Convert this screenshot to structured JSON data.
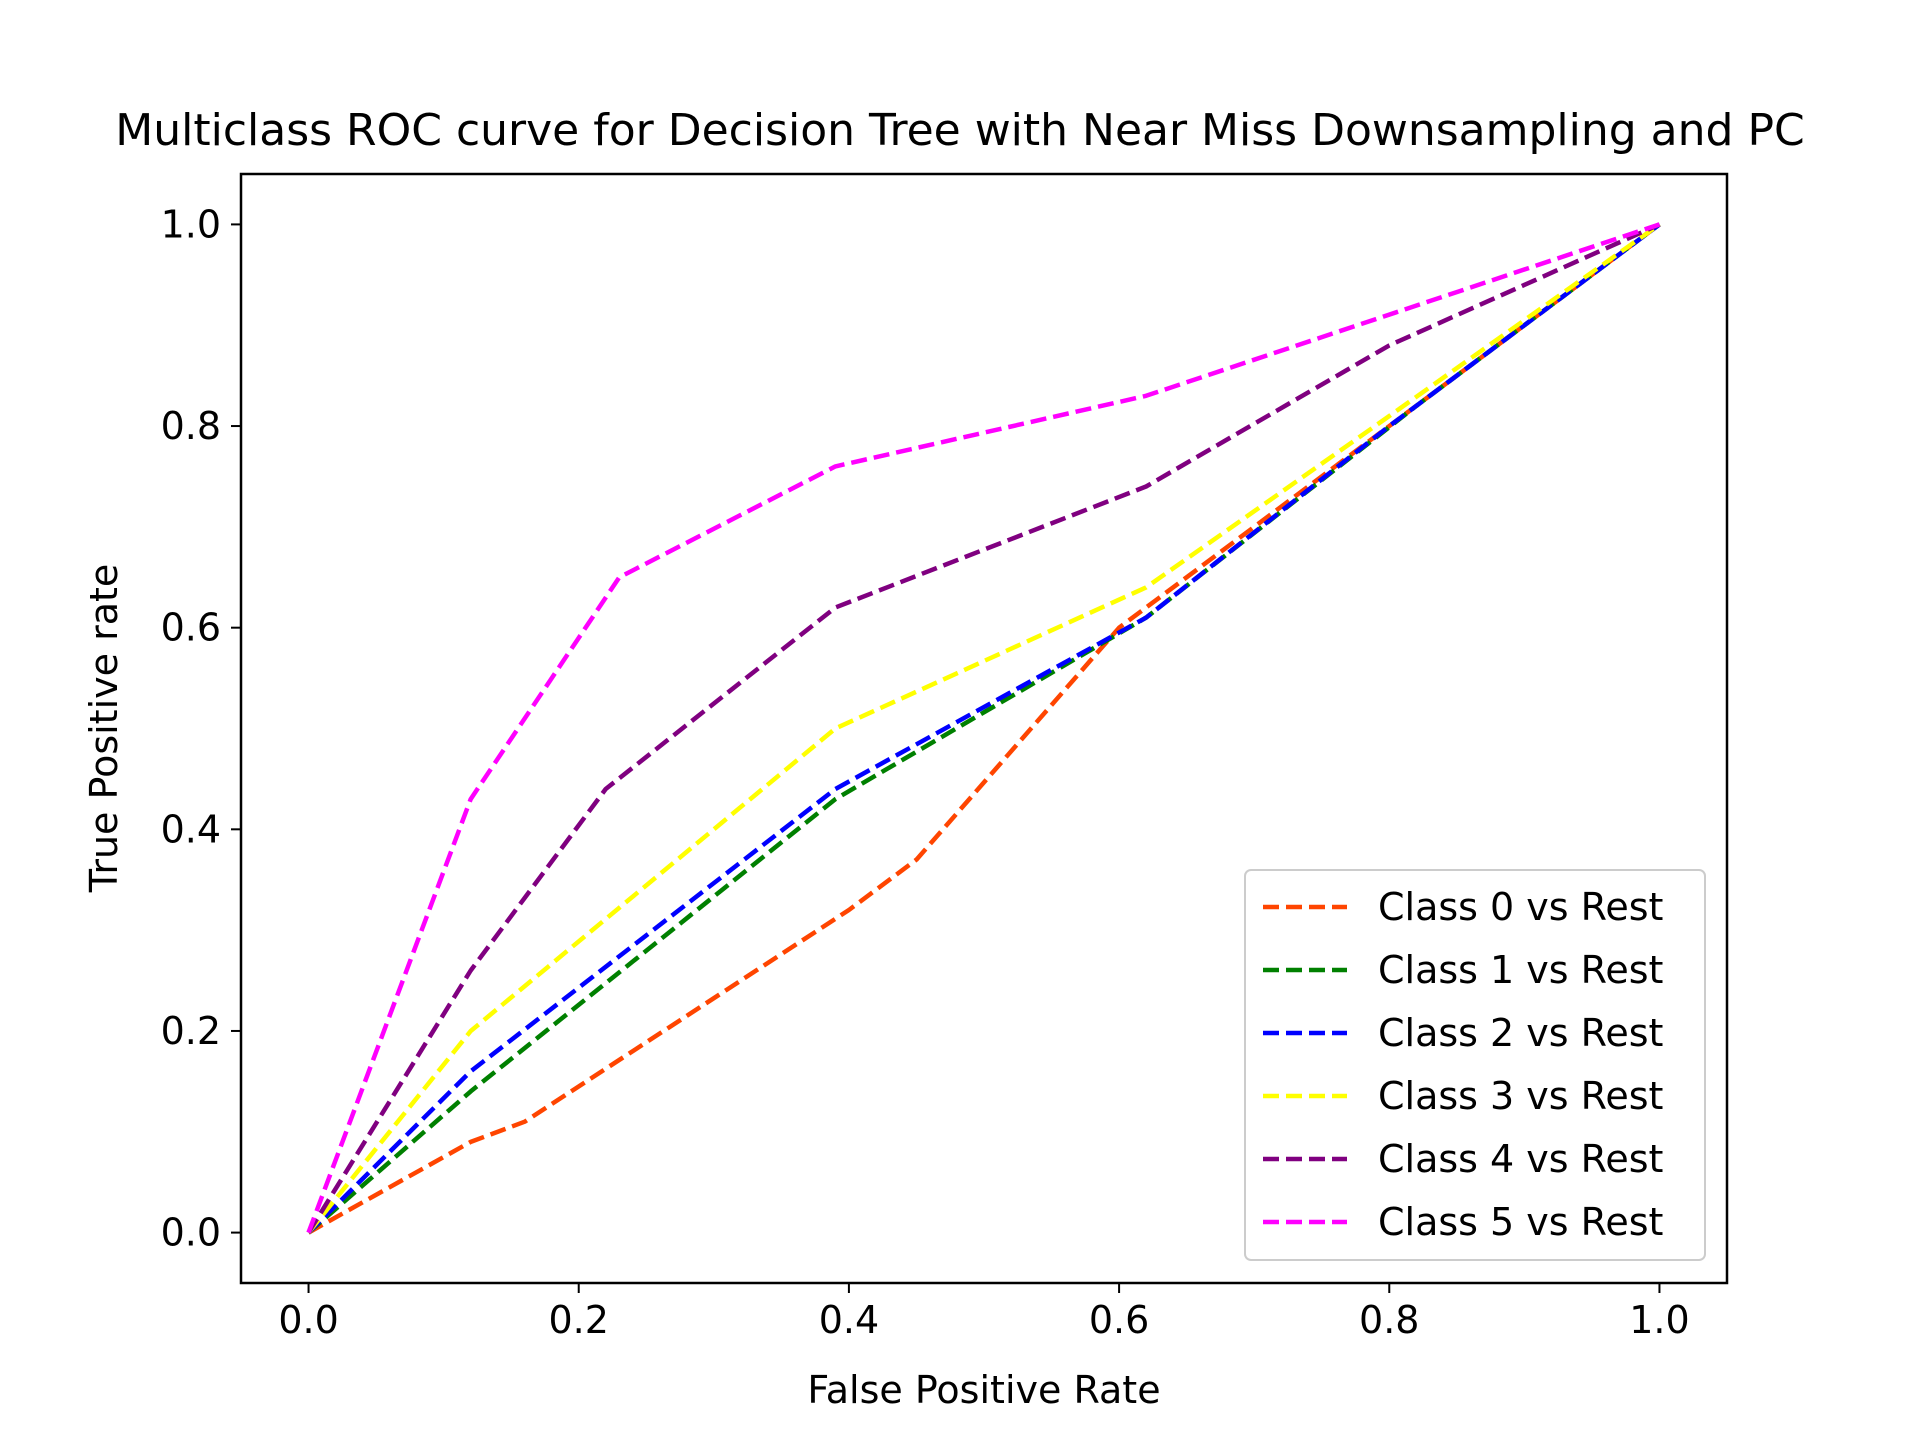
{
  "chart_data": {
    "type": "line",
    "title": "Multiclass ROC curve for Decision Tree with Near Miss Downsampling and PC",
    "xlabel": "False Positive Rate",
    "ylabel": "True Positive rate",
    "xlim": [
      -0.05,
      1.05
    ],
    "ylim": [
      -0.05,
      1.05
    ],
    "xticks": [
      "0.0",
      "0.2",
      "0.4",
      "0.6",
      "0.8",
      "1.0"
    ],
    "yticks": [
      "0.0",
      "0.2",
      "0.4",
      "0.6",
      "0.8",
      "1.0"
    ],
    "grid": false,
    "line_style": "dashed",
    "legend_position": "lower-right",
    "series": [
      {
        "name": "Class 0 vs Rest",
        "color": "#ff4500",
        "x": [
          0.0,
          0.12,
          0.16,
          0.24,
          0.4,
          0.45,
          0.6,
          0.8,
          1.0
        ],
        "y": [
          0.0,
          0.09,
          0.11,
          0.18,
          0.32,
          0.37,
          0.6,
          0.8,
          1.0
        ]
      },
      {
        "name": "Class 1 vs Rest",
        "color": "#008000",
        "x": [
          0.0,
          0.12,
          0.39,
          0.62,
          0.82,
          1.0
        ],
        "y": [
          0.0,
          0.14,
          0.43,
          0.61,
          0.82,
          1.0
        ]
      },
      {
        "name": "Class 2 vs Rest",
        "color": "#0000ff",
        "x": [
          0.0,
          0.12,
          0.39,
          0.62,
          0.8,
          1.0
        ],
        "y": [
          0.0,
          0.16,
          0.44,
          0.61,
          0.8,
          1.0
        ]
      },
      {
        "name": "Class 3 vs Rest",
        "color": "#ffff00",
        "x": [
          0.0,
          0.12,
          0.39,
          0.62,
          0.8,
          1.0
        ],
        "y": [
          0.0,
          0.2,
          0.5,
          0.64,
          0.81,
          1.0
        ]
      },
      {
        "name": "Class 4 vs Rest",
        "color": "#800080",
        "x": [
          0.0,
          0.12,
          0.22,
          0.39,
          0.62,
          0.8,
          1.0
        ],
        "y": [
          0.0,
          0.26,
          0.44,
          0.62,
          0.74,
          0.88,
          1.0
        ]
      },
      {
        "name": "Class 5 vs Rest",
        "color": "#ff00ff",
        "x": [
          0.0,
          0.12,
          0.23,
          0.39,
          0.62,
          1.0
        ],
        "y": [
          0.0,
          0.43,
          0.65,
          0.76,
          0.83,
          1.0
        ]
      }
    ]
  }
}
